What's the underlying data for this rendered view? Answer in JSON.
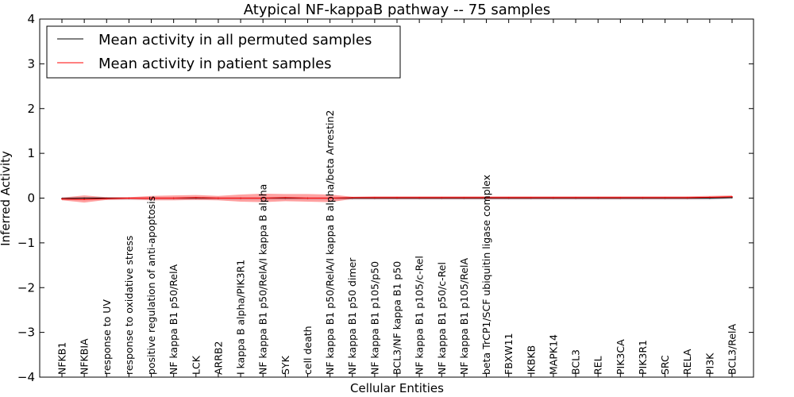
{
  "chart_data": {
    "type": "line",
    "title": "Atypical NF-kappaB pathway -- 75 samples",
    "xlabel": "Cellular Entities",
    "ylabel": "Inferred Activity",
    "ylim": [
      -4,
      4
    ],
    "yticks": [
      -4,
      -3,
      -2,
      -1,
      0,
      1,
      2,
      3,
      4
    ],
    "categories": [
      "NFKB1",
      "NFKBIA",
      "response to UV",
      "response to oxidative stress",
      "positive regulation of anti-apoptosis",
      "NF kappa B1 p50/RelA",
      "LCK",
      "ARRB2",
      "I kappa B alpha/PIK3R1",
      "NF kappa B1 p50/RelA/I kappa B alpha",
      "SYK",
      "cell death",
      "NF kappa B1 p50/RelA/I kappa B alpha/beta Arrestin2",
      "NF kappa B1 p50 dimer",
      "NF kappa B1 p105/p50",
      "BCL3/NF kappa B1 p50",
      "NF kappa B1 p105/c-Rel",
      "NF kappa B1 p50/c-Rel",
      "NF kappa B1 p105/RelA",
      "beta TrCP1/SCF ubiquitin ligase complex",
      "FBXW11",
      "IKBKB",
      "MAPK14",
      "BCL3",
      "REL",
      "PIK3CA",
      "PIK3R1",
      "SRC",
      "RELA",
      "PI3K",
      "BCL3/RelA"
    ],
    "series": [
      {
        "name": "Mean activity in all permuted samples",
        "color": "#000000",
        "values": [
          -0.01,
          0.0,
          0.0,
          0.0,
          0.0,
          0.0,
          0.0,
          0.0,
          0.0,
          0.0,
          0.0,
          0.0,
          0.0,
          0.0,
          0.0,
          0.0,
          0.0,
          0.0,
          0.0,
          0.0,
          0.0,
          0.0,
          0.0,
          0.0,
          0.0,
          0.0,
          0.0,
          0.0,
          0.0,
          0.0,
          0.01
        ]
      },
      {
        "name": "Mean activity in patient samples",
        "color": "#ff0000",
        "values": [
          -0.02,
          -0.03,
          -0.01,
          0.0,
          0.0,
          0.0,
          0.01,
          0.0,
          0.0,
          0.0,
          0.01,
          0.0,
          0.0,
          0.01,
          0.01,
          0.01,
          0.01,
          0.01,
          0.01,
          0.01,
          0.01,
          0.01,
          0.01,
          0.01,
          0.01,
          0.01,
          0.01,
          0.01,
          0.01,
          0.02,
          0.03
        ]
      }
    ],
    "bands": {
      "patient_upper": [
        0.01,
        0.06,
        0.02,
        0.02,
        0.05,
        0.06,
        0.07,
        0.05,
        0.08,
        0.1,
        0.09,
        0.09,
        0.08,
        0.03,
        0.04,
        0.04,
        0.04,
        0.04,
        0.04,
        0.04,
        0.04,
        0.04,
        0.04,
        0.04,
        0.04,
        0.04,
        0.04,
        0.04,
        0.04,
        0.05,
        0.06
      ],
      "patient_lower": [
        -0.05,
        -0.1,
        -0.04,
        -0.03,
        -0.05,
        -0.05,
        -0.04,
        -0.05,
        -0.08,
        -0.09,
        -0.07,
        -0.08,
        -0.09,
        -0.02,
        -0.02,
        -0.02,
        -0.02,
        -0.02,
        -0.02,
        -0.02,
        -0.02,
        -0.02,
        -0.02,
        -0.02,
        -0.02,
        -0.02,
        -0.02,
        -0.02,
        -0.02,
        -0.01,
        0.0
      ],
      "permuted_upper": [
        0.02,
        0.02,
        0.02,
        0.02,
        0.02,
        0.02,
        0.02,
        0.02,
        0.02,
        0.02,
        0.02,
        0.02,
        0.02,
        0.02,
        0.02,
        0.02,
        0.02,
        0.02,
        0.02,
        0.02,
        0.02,
        0.02,
        0.02,
        0.02,
        0.02,
        0.02,
        0.02,
        0.02,
        0.02,
        0.02,
        0.03
      ],
      "permuted_lower": [
        -0.04,
        -0.04,
        -0.04,
        -0.04,
        -0.04,
        -0.04,
        -0.04,
        -0.04,
        -0.04,
        -0.04,
        -0.04,
        -0.04,
        -0.04,
        -0.04,
        -0.04,
        -0.04,
        -0.04,
        -0.04,
        -0.04,
        -0.04,
        -0.04,
        -0.04,
        -0.04,
        -0.04,
        -0.04,
        -0.04,
        -0.04,
        -0.04,
        -0.04,
        -0.04,
        -0.02
      ]
    },
    "legend_location": "upper-left",
    "grid": false
  }
}
